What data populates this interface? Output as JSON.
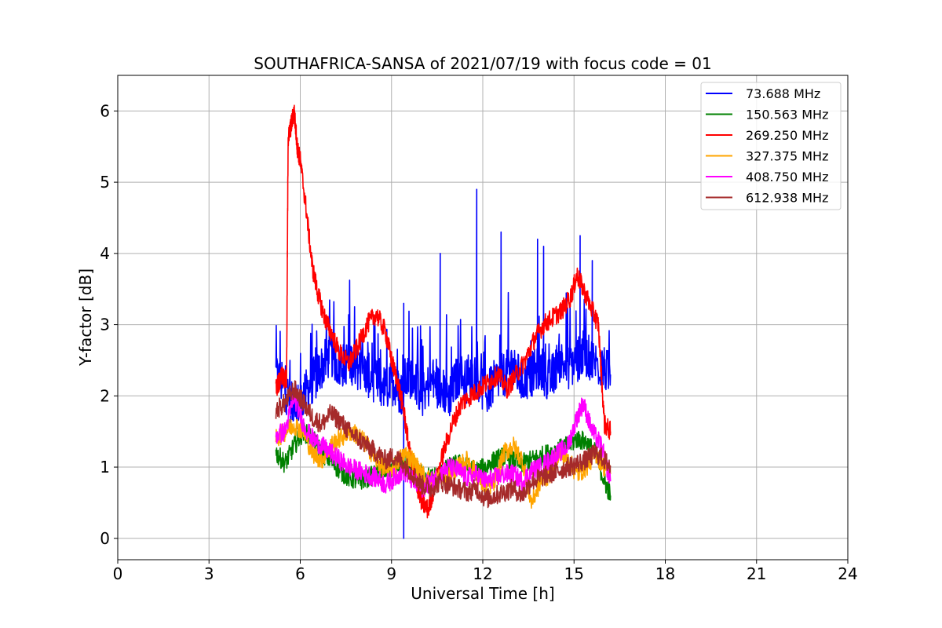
{
  "chart_data": {
    "type": "line",
    "title": "SOUTHAFRICA-SANSA of 2021/07/19 with focus code = 01",
    "xlabel": "Universal Time [h]",
    "ylabel": "Y-factor [dB]",
    "xlim": [
      0,
      24
    ],
    "ylim": [
      -0.3,
      6.5
    ],
    "xticks": [
      0,
      3,
      6,
      9,
      12,
      15,
      18,
      21,
      24
    ],
    "xtick_labels": [
      "0",
      "3",
      "6",
      "9",
      "12",
      "15",
      "18",
      "21",
      "24"
    ],
    "yticks": [
      0,
      1,
      2,
      3,
      4,
      5,
      6
    ],
    "ytick_labels": [
      "0",
      "1",
      "2",
      "3",
      "4",
      "5",
      "6"
    ],
    "grid": true,
    "legend_position": "top-right",
    "series": [
      {
        "name": "  73.688 MHz",
        "color": "#0000ff",
        "x": [
          5.2,
          5.5,
          5.8,
          6.1,
          6.4,
          6.7,
          7.0,
          7.3,
          7.6,
          7.9,
          8.2,
          8.5,
          8.8,
          9.1,
          9.3,
          9.4,
          9.7,
          10.0,
          10.3,
          10.6,
          10.9,
          11.2,
          11.5,
          11.8,
          12.1,
          12.4,
          12.7,
          13.0,
          13.3,
          13.6,
          13.9,
          14.2,
          14.5,
          14.8,
          15.1,
          15.3,
          15.6,
          15.9,
          16.2
        ],
        "y": [
          2.3,
          2.1,
          1.8,
          2.0,
          2.2,
          2.4,
          2.6,
          2.4,
          2.5,
          2.4,
          2.3,
          2.2,
          2.1,
          2.2,
          2.0,
          2.2,
          2.3,
          2.0,
          2.2,
          2.1,
          2.0,
          2.3,
          2.2,
          2.3,
          2.0,
          2.2,
          2.3,
          2.4,
          2.2,
          2.3,
          2.4,
          2.2,
          2.5,
          2.4,
          2.5,
          2.6,
          2.5,
          2.4,
          2.3
        ],
        "peaks": [
          [
            9.4,
            3.3
          ],
          [
            9.4,
            0.0
          ],
          [
            10.6,
            4.0
          ],
          [
            11.8,
            4.9
          ],
          [
            12.6,
            4.3
          ],
          [
            13.8,
            4.2
          ],
          [
            14.0,
            4.1
          ],
          [
            15.2,
            4.25
          ],
          [
            15.6,
            3.9
          ]
        ]
      },
      {
        "name": "150.563 MHz",
        "color": "#008000",
        "x": [
          5.2,
          5.5,
          5.8,
          6.1,
          6.4,
          6.7,
          7.0,
          7.3,
          7.6,
          7.9,
          8.2,
          8.5,
          8.8,
          9.1,
          9.4,
          9.7,
          10.0,
          10.3,
          10.6,
          10.9,
          11.2,
          11.5,
          11.8,
          12.1,
          12.4,
          12.7,
          13.0,
          13.3,
          13.6,
          13.9,
          14.2,
          14.5,
          14.8,
          15.1,
          15.4,
          15.7,
          16.0,
          16.2
        ],
        "y": [
          1.2,
          1.05,
          1.3,
          1.5,
          1.4,
          1.2,
          1.1,
          0.95,
          0.85,
          0.8,
          0.85,
          0.9,
          0.95,
          1.0,
          1.05,
          0.95,
          0.9,
          0.85,
          0.9,
          1.0,
          1.05,
          1.0,
          0.95,
          1.0,
          1.1,
          1.15,
          1.1,
          1.05,
          1.1,
          1.15,
          1.2,
          1.25,
          1.3,
          1.4,
          1.35,
          1.2,
          0.8,
          0.6
        ]
      },
      {
        "name": "269.250 MHz",
        "color": "#ff0000",
        "x": [
          5.2,
          5.4,
          5.55,
          5.6,
          5.7,
          5.8,
          5.9,
          6.0,
          6.2,
          6.4,
          6.6,
          6.8,
          7.0,
          7.3,
          7.6,
          7.9,
          8.2,
          8.5,
          8.8,
          9.0,
          9.2,
          9.4,
          9.6,
          9.8,
          10.0,
          10.2,
          10.4,
          10.7,
          11.0,
          11.3,
          11.6,
          11.9,
          12.2,
          12.5,
          12.8,
          13.1,
          13.4,
          13.7,
          14.0,
          14.3,
          14.6,
          14.9,
          15.1,
          15.3,
          15.6,
          15.8,
          16.0,
          16.2
        ],
        "y": [
          2.1,
          2.3,
          2.2,
          5.6,
          5.8,
          6.0,
          5.5,
          5.3,
          4.6,
          3.8,
          3.4,
          3.1,
          2.9,
          2.6,
          2.45,
          2.7,
          3.0,
          3.15,
          2.9,
          2.5,
          2.2,
          1.8,
          1.2,
          0.8,
          0.5,
          0.4,
          0.7,
          1.2,
          1.6,
          1.9,
          2.0,
          2.1,
          2.2,
          2.3,
          2.1,
          2.3,
          2.5,
          2.8,
          3.0,
          3.1,
          3.2,
          3.4,
          3.7,
          3.5,
          3.2,
          3.0,
          1.6,
          1.5
        ]
      },
      {
        "name": "327.375 MHz",
        "color": "#ffa500",
        "x": [
          5.2,
          5.5,
          5.8,
          6.1,
          6.4,
          6.7,
          7.0,
          7.3,
          7.6,
          7.9,
          8.2,
          8.5,
          8.8,
          9.1,
          9.4,
          9.7,
          10.0,
          10.3,
          10.6,
          10.9,
          11.2,
          11.5,
          11.8,
          12.1,
          12.4,
          12.7,
          13.0,
          13.3,
          13.6,
          13.9,
          14.2,
          14.5,
          14.8,
          15.1,
          15.4,
          15.7,
          16.0,
          16.2
        ],
        "y": [
          1.4,
          1.5,
          1.6,
          1.5,
          1.2,
          1.1,
          1.3,
          1.4,
          1.5,
          1.45,
          1.3,
          1.1,
          0.95,
          1.0,
          1.2,
          1.1,
          0.9,
          0.8,
          0.85,
          0.9,
          1.0,
          1.1,
          0.9,
          0.7,
          0.8,
          1.2,
          1.3,
          1.1,
          0.5,
          0.8,
          0.9,
          1.2,
          1.1,
          0.9,
          1.0,
          1.2,
          1.0,
          0.9
        ]
      },
      {
        "name": "408.750 MHz",
        "color": "#ff00ff",
        "x": [
          5.2,
          5.5,
          5.8,
          6.1,
          6.4,
          6.7,
          7.0,
          7.3,
          7.6,
          7.9,
          8.2,
          8.5,
          8.8,
          9.1,
          9.4,
          9.7,
          10.0,
          10.3,
          10.6,
          10.9,
          11.2,
          11.5,
          11.8,
          12.1,
          12.4,
          12.7,
          13.0,
          13.3,
          13.6,
          13.9,
          14.2,
          14.5,
          14.8,
          15.1,
          15.3,
          15.6,
          15.9,
          16.2
        ],
        "y": [
          1.45,
          1.5,
          2.0,
          1.6,
          1.4,
          1.3,
          1.2,
          1.1,
          1.0,
          0.95,
          0.9,
          0.85,
          0.75,
          0.85,
          0.95,
          0.8,
          0.7,
          0.8,
          0.9,
          1.0,
          0.95,
          0.85,
          0.9,
          0.8,
          0.85,
          0.9,
          0.9,
          0.8,
          0.95,
          1.0,
          1.1,
          1.2,
          1.3,
          1.7,
          1.9,
          1.5,
          1.3,
          0.8
        ]
      },
      {
        "name": "612.938 MHz",
        "color": "#a52a2a",
        "x": [
          5.2,
          5.5,
          5.8,
          6.1,
          6.4,
          6.7,
          7.0,
          7.3,
          7.6,
          7.9,
          8.2,
          8.5,
          8.8,
          9.1,
          9.4,
          9.7,
          10.0,
          10.3,
          10.6,
          10.9,
          11.2,
          11.5,
          11.8,
          12.1,
          12.4,
          12.7,
          13.0,
          13.3,
          13.6,
          13.9,
          14.2,
          14.5,
          14.8,
          15.1,
          15.4,
          15.7,
          16.0,
          16.2
        ],
        "y": [
          1.8,
          1.9,
          2.1,
          1.9,
          1.7,
          1.6,
          1.75,
          1.65,
          1.5,
          1.4,
          1.3,
          1.2,
          1.1,
          1.15,
          1.05,
          0.9,
          0.75,
          0.7,
          0.8,
          0.75,
          0.7,
          0.65,
          0.7,
          0.55,
          0.6,
          0.65,
          0.7,
          0.6,
          0.8,
          0.85,
          0.9,
          0.95,
          1.0,
          1.05,
          1.1,
          1.2,
          1.1,
          1.0
        ]
      }
    ]
  }
}
